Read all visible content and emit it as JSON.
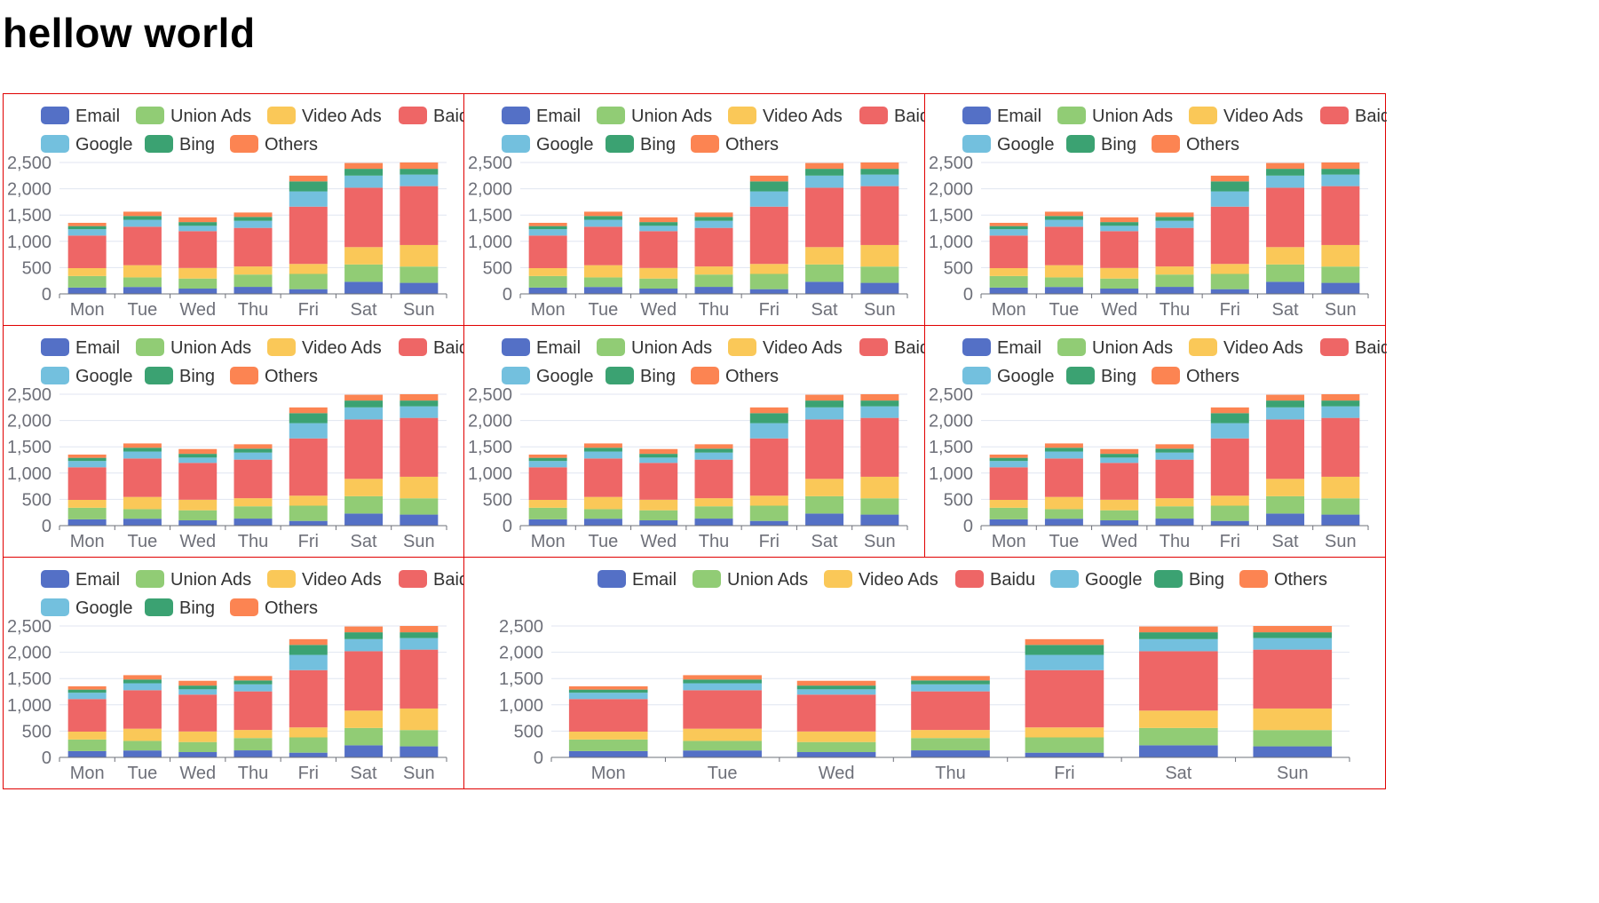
{
  "page": {
    "title": "hellow world"
  },
  "chart_data": {
    "type": "bar",
    "stacked": true,
    "panel_count": 8,
    "categories": [
      "Mon",
      "Tue",
      "Wed",
      "Thu",
      "Fri",
      "Sat",
      "Sun"
    ],
    "series": [
      {
        "name": "Email",
        "color": "#5470c6",
        "values": [
          120,
          132,
          101,
          134,
          90,
          230,
          210
        ]
      },
      {
        "name": "Union Ads",
        "color": "#91cc75",
        "values": [
          220,
          182,
          191,
          234,
          290,
          330,
          310
        ]
      },
      {
        "name": "Video Ads",
        "color": "#fac858",
        "values": [
          150,
          232,
          201,
          154,
          190,
          330,
          410
        ]
      },
      {
        "name": "Baidu",
        "color": "#ee6666",
        "values": [
          620,
          732,
          701,
          734,
          1090,
          1130,
          1120
        ]
      },
      {
        "name": "Google",
        "color": "#73c0de",
        "values": [
          120,
          132,
          101,
          134,
          290,
          230,
          220
        ]
      },
      {
        "name": "Bing",
        "color": "#3ba272",
        "values": [
          60,
          72,
          71,
          74,
          190,
          130,
          110
        ]
      },
      {
        "name": "Others",
        "color": "#fc8452",
        "values": [
          62,
          82,
          91,
          84,
          109,
          110,
          120
        ]
      }
    ],
    "yticks": [
      "0",
      "500",
      "1,000",
      "1,500",
      "2,000",
      "2,500"
    ],
    "ylim": [
      0,
      2500
    ],
    "legend_position": "top-center",
    "grid": true
  }
}
